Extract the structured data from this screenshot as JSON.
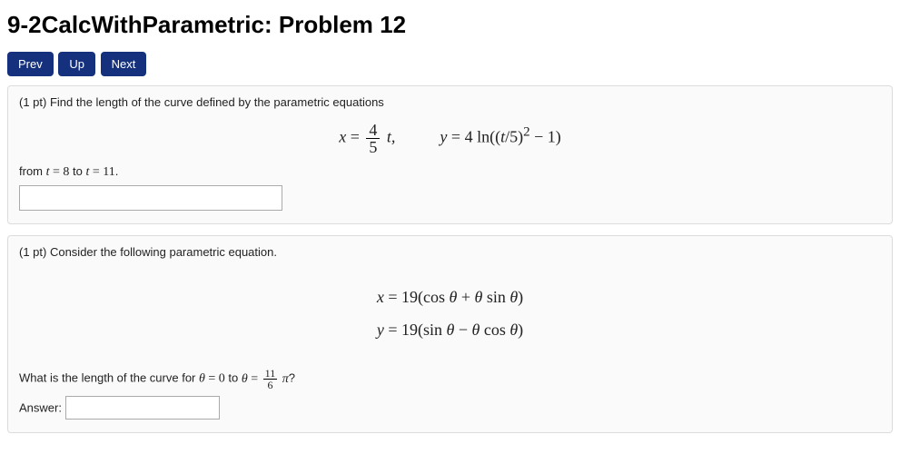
{
  "header": {
    "title": "9-2CalcWithParametric: Problem 12"
  },
  "nav": {
    "prev": "Prev",
    "up": "Up",
    "next": "Next"
  },
  "problem1": {
    "prompt_prefix": "(1 pt) Find the length of the curve defined by the parametric equations",
    "eq_x_var": "x",
    "eq_x_frac_num": "4",
    "eq_x_frac_den": "5",
    "eq_x_tail": "t,",
    "eq_y_var": "y",
    "eq_y_coef": "4",
    "eq_y_text_a": " ln((",
    "eq_y_tvar": "t",
    "eq_y_text_b": "/5)",
    "eq_y_exp": "2",
    "eq_y_text_c": " − 1)",
    "from_label_a": "from ",
    "from_t": "t",
    "from_eq8": " = 8",
    "from_label_b": " to ",
    "from_t2": "t",
    "from_eq11": " = 11",
    "period": ".",
    "input_value": ""
  },
  "problem2": {
    "prompt_prefix": "(1 pt) Consider the following parametric equation.",
    "line1_x": "x",
    "line1_rhs_a": " = 19(cos ",
    "line1_th1": "θ",
    "line1_rhs_b": " + ",
    "line1_th2": "θ",
    "line1_rhs_c": " sin ",
    "line1_th3": "θ",
    "line1_rhs_d": ")",
    "line2_y": "y",
    "line2_rhs_a": " = 19(sin ",
    "line2_th1": "θ",
    "line2_rhs_b": " − ",
    "line2_th2": "θ",
    "line2_rhs_c": " cos ",
    "line2_th3": "θ",
    "line2_rhs_d": ")",
    "question_a": "What is the length of the curve for ",
    "q_th1": "θ",
    "question_b": " = 0",
    "question_c": " to ",
    "q_th2": "θ",
    "question_d": " = ",
    "q_frac_num": "11",
    "q_frac_den": "6",
    "q_pi": " π",
    "question_e": "?",
    "answer_label": "Answer:",
    "input_value": ""
  },
  "colors": {
    "nav_button_bg": "#15317e",
    "nav_button_text": "#ffffff",
    "box_border": "#dcdcdc",
    "box_bg": "#fafafa",
    "page_bg": "#ffffff",
    "text": "#222222"
  }
}
